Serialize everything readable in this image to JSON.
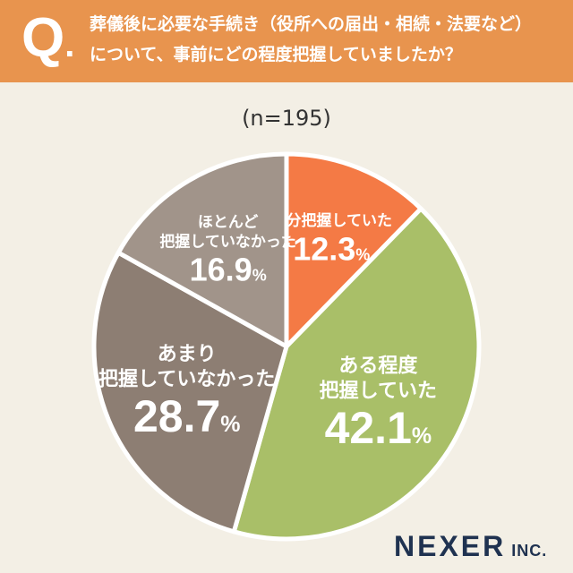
{
  "header": {
    "q_mark": "Q",
    "q_dot": ".",
    "line1": "葬儀後に必要な手続き（役所への届出・相続・法要など）",
    "line2": "について、事前にどの程度把握していましたか？"
  },
  "sample_label": "(n=195)",
  "chart_data": {
    "type": "pie",
    "title": "葬儀後に必要な手続き（役所への届出・相続・法要など）について、事前にどの程度把握していましたか？",
    "subtitle": "(n=195)",
    "unit": "%",
    "slices": [
      {
        "label_lines": [
          "十分把握していた"
        ],
        "value": 12.3,
        "display": "12.3",
        "color": "#f47a45",
        "label_color": "#ffffff"
      },
      {
        "label_lines": [
          "ある程度",
          "把握していた"
        ],
        "value": 42.1,
        "display": "42.1",
        "color": "#a9bf68",
        "label_color": "#ffffff"
      },
      {
        "label_lines": [
          "あまり",
          "把握していなかった"
        ],
        "value": 28.7,
        "display": "28.7",
        "color": "#8d7e73",
        "label_color": "#ffffff"
      },
      {
        "label_lines": [
          "ほとんど",
          "把握していなかった"
        ],
        "value": 16.9,
        "display": "16.9",
        "color": "#a1948a",
        "label_color": "#ffffff"
      }
    ]
  },
  "logo": {
    "main": "NEXER",
    "suffix": " INC."
  }
}
